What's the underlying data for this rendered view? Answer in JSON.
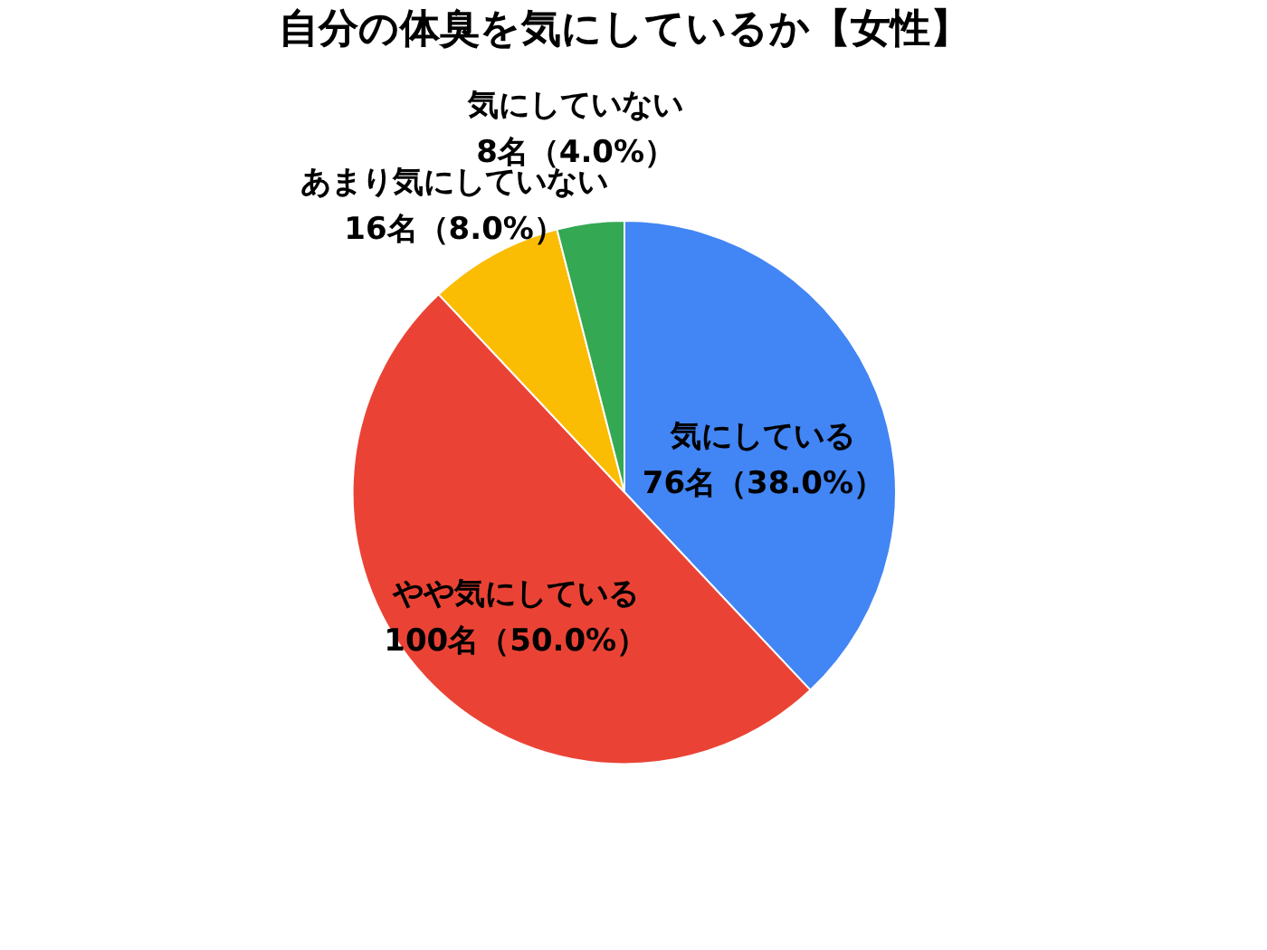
{
  "chart_data": {
    "type": "pie",
    "title": "自分の体臭を気にしているか【女性】",
    "categories": [
      "気にしている",
      "やや気にしている",
      "あまり気にしていない",
      "気にしていない"
    ],
    "values": [
      76,
      100,
      16,
      8
    ],
    "value_labels": [
      "76名（38.0%）",
      "100名（50.0%）",
      "16名（8.0%）",
      "8名（4.0%）"
    ],
    "colors": [
      "#4285f4",
      "#ea4335",
      "#fbbc04",
      "#34a853"
    ]
  }
}
